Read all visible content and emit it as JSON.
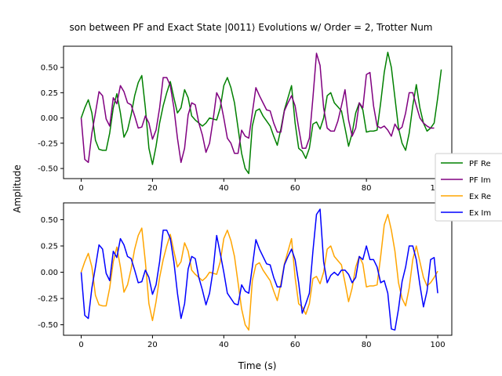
{
  "chart_data": {
    "type": "line",
    "title": "son between PF and Exact State |0011⟩ Evolutions w/ Order = 2, Trotter Num",
    "xlabel": "Time (s)",
    "ylabel": "Amplitude",
    "panels": [
      {
        "name": "top",
        "xlim": [
          -4.95,
          103.95
        ],
        "ylim": [
          -0.6,
          0.71
        ],
        "xticks": [
          0,
          20,
          40,
          60,
          80,
          100
        ],
        "yticks": [
          -0.5,
          -0.25,
          0.0,
          0.25,
          0.5
        ],
        "series": [
          {
            "name": "PF Re",
            "color": "#008000",
            "x_start": 0,
            "x_step": 1,
            "values": [
              0.0,
              0.1,
              0.18,
              0.05,
              -0.22,
              -0.31,
              -0.32,
              -0.32,
              -0.15,
              0.1,
              0.24,
              0.05,
              -0.19,
              -0.12,
              0.03,
              0.22,
              0.35,
              0.42,
              0.1,
              -0.3,
              -0.46,
              -0.28,
              -0.05,
              0.12,
              0.25,
              0.36,
              0.2,
              0.05,
              0.1,
              0.28,
              0.2,
              0.02,
              -0.02,
              -0.05,
              -0.08,
              -0.05,
              0.0,
              -0.01,
              -0.02,
              0.1,
              0.32,
              0.4,
              0.3,
              0.15,
              -0.1,
              -0.35,
              -0.5,
              -0.55,
              -0.08,
              0.07,
              0.09,
              0.02,
              -0.03,
              -0.08,
              -0.18,
              -0.27,
              -0.11,
              0.08,
              0.2,
              0.32,
              -0.05,
              -0.3,
              -0.33,
              -0.4,
              -0.3,
              -0.06,
              -0.04,
              -0.11,
              0.0,
              0.22,
              0.25,
              0.15,
              0.11,
              0.07,
              -0.1,
              -0.28,
              -0.15,
              0.05,
              0.15,
              0.08,
              -0.14,
              -0.13,
              -0.13,
              -0.12,
              0.15,
              0.45,
              0.65,
              0.5,
              0.2,
              -0.1,
              -0.25,
              -0.32,
              -0.15,
              0.12,
              0.33,
              0.1,
              -0.05,
              -0.13,
              -0.1,
              -0.05,
              0.2,
              0.48
            ]
          },
          {
            "name": "PF Im",
            "color": "#800080",
            "x_start": 0,
            "x_step": 1,
            "values": [
              0.0,
              -0.41,
              -0.44,
              -0.15,
              0.05,
              0.26,
              0.22,
              -0.01,
              -0.08,
              0.2,
              0.14,
              0.32,
              0.26,
              0.15,
              0.13,
              0.02,
              -0.1,
              -0.09,
              0.02,
              -0.05,
              -0.21,
              -0.12,
              0.1,
              0.4,
              0.4,
              0.32,
              0.1,
              -0.2,
              -0.44,
              -0.3,
              0.03,
              0.15,
              0.13,
              -0.05,
              -0.17,
              -0.34,
              -0.25,
              -0.02,
              0.25,
              0.18,
              0.0,
              -0.2,
              -0.25,
              -0.35,
              -0.35,
              -0.12,
              -0.18,
              -0.2,
              0.05,
              0.3,
              0.22,
              0.15,
              0.08,
              0.07,
              -0.05,
              -0.14,
              -0.14,
              0.07,
              0.15,
              0.22,
              0.12,
              -0.1,
              -0.3,
              -0.3,
              -0.2,
              0.2,
              0.64,
              0.52,
              0.1,
              -0.1,
              -0.13,
              -0.13,
              -0.03,
              0.12,
              0.28,
              -0.02,
              -0.18,
              -0.1,
              0.15,
              0.1,
              0.43,
              0.45,
              0.12,
              -0.08,
              -0.1,
              -0.08,
              -0.12,
              -0.18,
              -0.06,
              -0.12,
              -0.09,
              0.05,
              0.25,
              0.25,
              0.12,
              0.0,
              -0.05,
              -0.08,
              -0.1,
              -0.1
            ]
          }
        ]
      },
      {
        "name": "bottom",
        "xlim": [
          -4.95,
          103.95
        ],
        "ylim": [
          -0.6,
          0.66
        ],
        "xticks": [
          0,
          20,
          40,
          60,
          80,
          100
        ],
        "yticks": [
          -0.5,
          -0.25,
          0.0,
          0.25,
          0.5
        ],
        "series": [
          {
            "name": "Ex Re",
            "color": "#FFA500",
            "x_start": 0,
            "x_step": 1,
            "values": [
              0.0,
              0.1,
              0.18,
              0.05,
              -0.22,
              -0.31,
              -0.32,
              -0.32,
              -0.15,
              0.1,
              0.24,
              0.05,
              -0.19,
              -0.12,
              0.03,
              0.22,
              0.35,
              0.42,
              0.1,
              -0.3,
              -0.46,
              -0.28,
              -0.05,
              0.12,
              0.25,
              0.36,
              0.2,
              0.05,
              0.1,
              0.28,
              0.2,
              0.02,
              -0.02,
              -0.05,
              -0.08,
              -0.05,
              0.0,
              -0.01,
              -0.02,
              0.1,
              0.32,
              0.4,
              0.3,
              0.15,
              -0.1,
              -0.35,
              -0.5,
              -0.55,
              -0.08,
              0.07,
              0.09,
              0.02,
              -0.03,
              -0.08,
              -0.18,
              -0.27,
              -0.11,
              0.08,
              0.2,
              0.32,
              -0.05,
              -0.3,
              -0.33,
              -0.4,
              -0.3,
              -0.06,
              -0.04,
              -0.11,
              0.0,
              0.22,
              0.25,
              0.15,
              0.11,
              0.07,
              -0.1,
              -0.28,
              -0.15,
              0.05,
              0.15,
              0.08,
              -0.14,
              -0.13,
              -0.13,
              -0.12,
              0.15,
              0.45,
              0.55,
              0.4,
              0.2,
              -0.1,
              -0.25,
              -0.32,
              -0.15,
              0.12,
              0.25,
              0.1,
              -0.05,
              -0.13,
              -0.1,
              -0.05,
              0.01
            ]
          },
          {
            "name": "Ex Im",
            "color": "#0000FF",
            "x_start": 0,
            "x_step": 1,
            "values": [
              0.0,
              -0.41,
              -0.44,
              -0.15,
              0.05,
              0.26,
              0.22,
              -0.01,
              -0.08,
              0.2,
              0.14,
              0.32,
              0.26,
              0.15,
              0.13,
              0.02,
              -0.1,
              -0.09,
              0.02,
              -0.05,
              -0.21,
              -0.12,
              0.1,
              0.4,
              0.4,
              0.32,
              0.1,
              -0.2,
              -0.44,
              -0.3,
              0.03,
              0.15,
              0.13,
              -0.05,
              -0.17,
              -0.31,
              -0.2,
              0.02,
              0.35,
              0.18,
              0.0,
              -0.2,
              -0.25,
              -0.3,
              -0.31,
              -0.12,
              -0.18,
              -0.2,
              0.05,
              0.31,
              0.22,
              0.15,
              0.08,
              0.07,
              -0.05,
              -0.14,
              -0.14,
              0.07,
              0.15,
              0.22,
              0.12,
              -0.1,
              -0.39,
              -0.3,
              -0.2,
              0.2,
              0.55,
              0.6,
              0.1,
              -0.1,
              -0.03,
              0.0,
              -0.03,
              0.02,
              0.02,
              -0.02,
              -0.1,
              -0.05,
              0.15,
              0.12,
              0.25,
              0.12,
              0.12,
              0.05,
              -0.1,
              -0.08,
              -0.2,
              -0.54,
              -0.55,
              -0.35,
              -0.09,
              0.05,
              0.25,
              0.25,
              0.12,
              -0.12,
              -0.33,
              -0.18,
              0.12,
              0.14,
              -0.2
            ]
          }
        ]
      }
    ]
  }
}
